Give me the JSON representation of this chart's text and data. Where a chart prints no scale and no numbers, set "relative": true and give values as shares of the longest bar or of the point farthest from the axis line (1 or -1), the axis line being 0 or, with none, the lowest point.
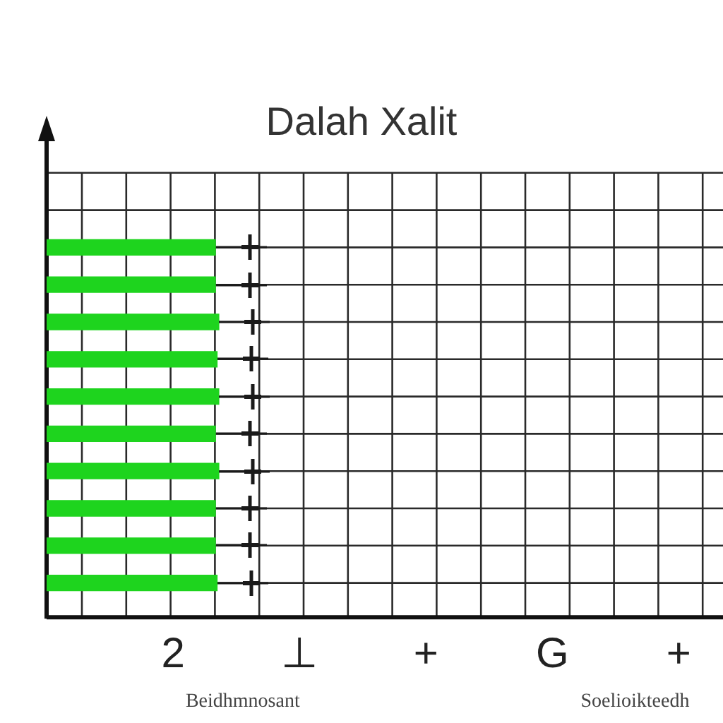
{
  "chart_data": {
    "type": "bar",
    "orientation": "horizontal",
    "relative": true,
    "title": "Dalah Xalit",
    "categories": [
      null,
      null,
      null,
      null,
      null,
      null,
      null,
      null,
      null,
      null
    ],
    "values": [
      0.98,
      0.98,
      1,
      0.99,
      1,
      0.98,
      1,
      0.98,
      0.98,
      0.99
    ],
    "color": "#1ed41e",
    "grid": true,
    "annotations": [
      "2",
      "⊥",
      "+",
      "G",
      "+",
      "Beidhmnosant",
      "Soelioikteedh"
    ]
  }
}
